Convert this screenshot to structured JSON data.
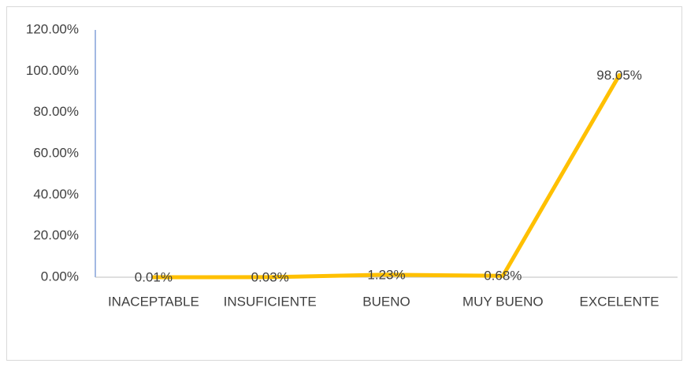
{
  "chart_data": {
    "type": "line",
    "categories": [
      "INACEPTABLE",
      "INSUFICIENTE",
      "BUENO",
      "MUY BUENO",
      "EXCELENTE"
    ],
    "values": [
      0.01,
      0.03,
      1.23,
      0.68,
      98.05
    ],
    "value_labels": [
      "0.01%",
      "0.03%",
      "1.23%",
      "0.68%",
      "98.05%"
    ],
    "color": "#ffc000",
    "ylim": [
      0,
      120
    ],
    "yticks": [
      {
        "value": 0,
        "label": "0.00%"
      },
      {
        "value": 20,
        "label": "20.00%"
      },
      {
        "value": 40,
        "label": "40.00%"
      },
      {
        "value": 60,
        "label": "60.00%"
      },
      {
        "value": 80,
        "label": "80.00%"
      },
      {
        "value": 100,
        "label": "100.00%"
      },
      {
        "value": 120,
        "label": "120.00%"
      }
    ],
    "grid": false
  }
}
